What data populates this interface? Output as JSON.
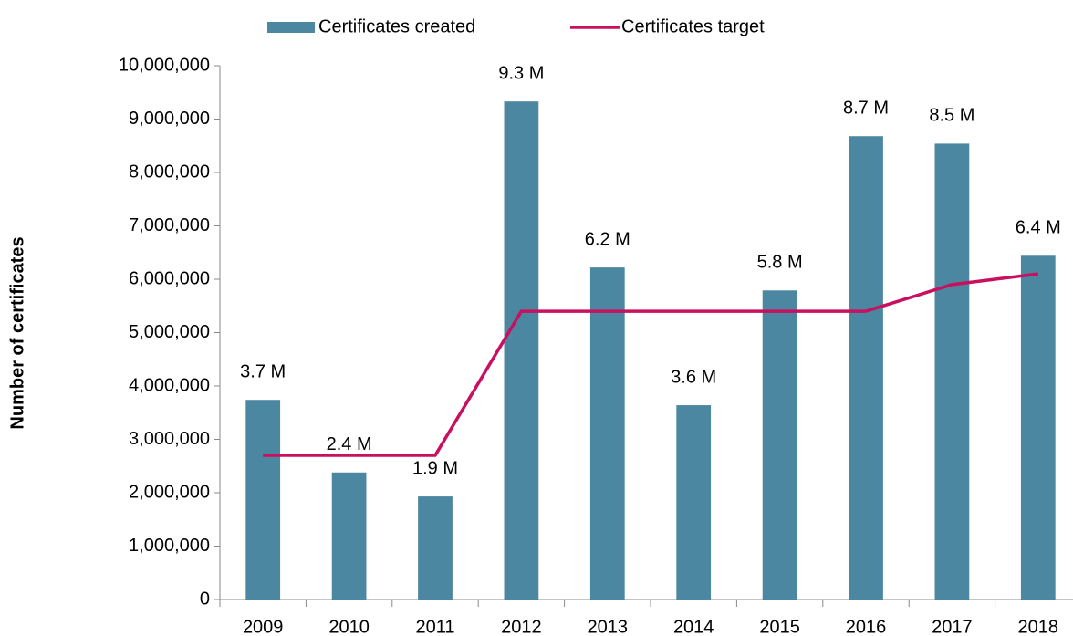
{
  "chart_data": {
    "type": "bar",
    "y_label": "Number of certificates",
    "categories": [
      "2009",
      "2010",
      "2011",
      "2012",
      "2013",
      "2014",
      "2015",
      "2016",
      "2017",
      "2018"
    ],
    "series": [
      {
        "name": "Certificates created",
        "type": "bar",
        "color": "#4b87a0",
        "values": [
          3740000,
          2380000,
          1930000,
          9330000,
          6220000,
          3640000,
          5790000,
          8680000,
          8540000,
          6440000
        ],
        "value_labels": [
          "3.7 M",
          "2.4 M",
          "1.9 M",
          "9.3 M",
          "6.2 M",
          "3.6 M",
          "5.8 M",
          "8.7 M",
          "8.5 M",
          "6.4 M"
        ]
      },
      {
        "name": "Certificates target",
        "type": "line",
        "color": "#c8105f",
        "values": [
          2700000,
          2700000,
          2700000,
          5400000,
          5400000,
          5400000,
          5400000,
          5400000,
          5900000,
          6100000
        ]
      }
    ],
    "ylim": [
      0,
      10000000
    ],
    "yticks": [
      0,
      {
        "value": 1000000,
        "label": "1,000,000"
      },
      {
        "value": 2000000,
        "label": "2,000,000"
      },
      {
        "value": 3000000,
        "label": "3,000,000"
      },
      {
        "value": 4000000,
        "label": "4,000,000"
      },
      {
        "value": 5000000,
        "label": "5,000,000"
      },
      {
        "value": 6000000,
        "label": "6,000,000"
      },
      {
        "value": 7000000,
        "label": "7,000,000"
      },
      {
        "value": 8000000,
        "label": "8,000,000"
      },
      {
        "value": 9000000,
        "label": "9,000,000"
      },
      {
        "value": 10000000,
        "label": "10,000,000"
      }
    ],
    "legend": "top",
    "grid": false
  }
}
